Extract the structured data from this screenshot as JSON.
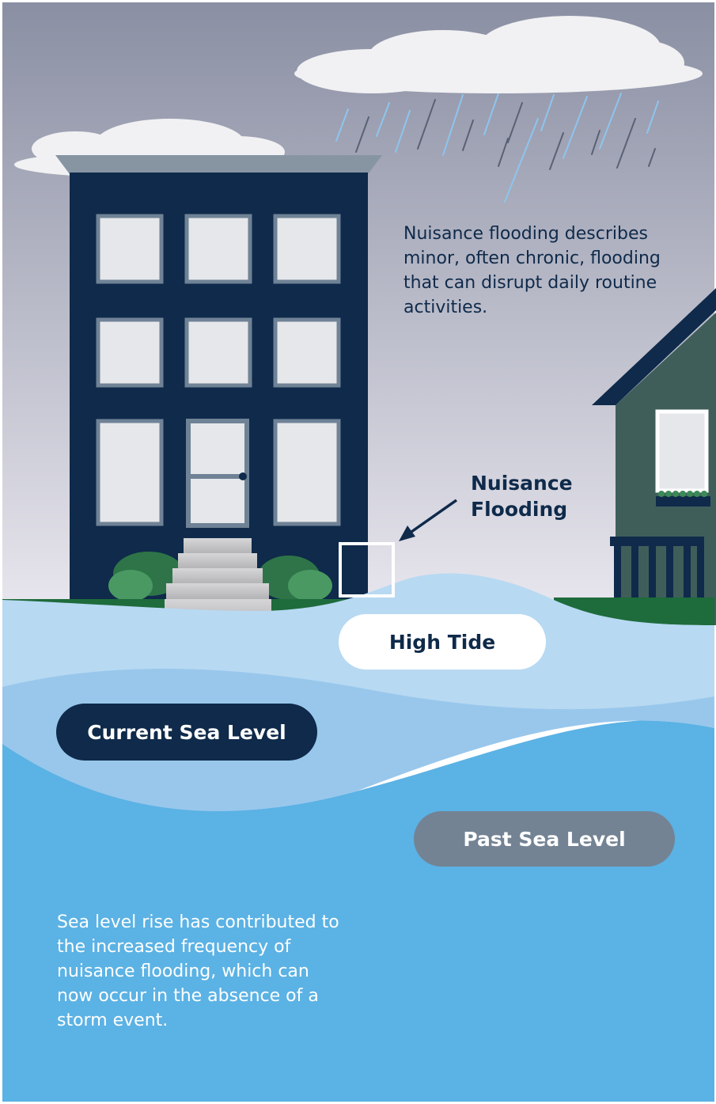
{
  "description_top": "Nuisance flooding describes minor, often chronic, flooding that can disrupt daily routine activities.",
  "callout": {
    "line1": "Nuisance",
    "line2": "Flooding"
  },
  "labels": {
    "high_tide": "High Tide",
    "current_sea_level": "Current Sea Level",
    "past_sea_level": "Past Sea Level"
  },
  "description_bottom": "Sea level rise has contributed to the increased frequency of nuisance flooding, which can now occur in the absence of a storm event.",
  "colors": {
    "sky_top": "#8a8fa3",
    "sky_bottom": "#eceaf1",
    "building_navy": "#0f2a4a",
    "window_frame": "#6f8296",
    "window_glass": "#e6e7ea",
    "house_green": "#3f5e5a",
    "grass": "#1e6b3c",
    "shrub": "#3c8a57",
    "high_tide_water": "#b7d9f2",
    "current_water": "#99c7ec",
    "past_water": "#5bb2e4",
    "pill_dark": "#0f2a4a",
    "pill_gray": "#738394",
    "rain_blue": "#8ec5ee",
    "rain_gray": "#5a6274"
  }
}
